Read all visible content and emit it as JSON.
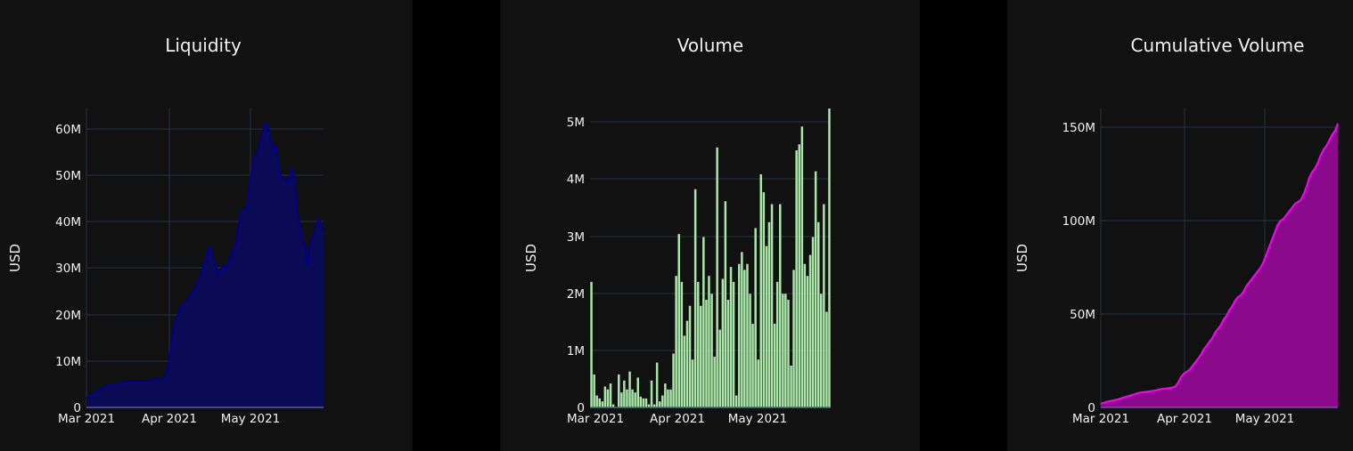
{
  "charts": [
    {
      "title": "Liquidity",
      "ylabel": "USD",
      "xticks": [
        "Mar 2021",
        "Apr 2021",
        "May 2021"
      ],
      "yticks": [
        "0",
        "10M",
        "20M",
        "30M",
        "40M",
        "50M",
        "60M"
      ],
      "color": "#00008b",
      "fill": "#0b0b55"
    },
    {
      "title": "Volume",
      "ylabel": "USD",
      "xticks": [
        "Mar 2021",
        "Apr 2021",
        "May 2021"
      ],
      "yticks": [
        "0",
        "1M",
        "2M",
        "3M",
        "4M",
        "5M"
      ],
      "color": "#a8e6a8"
    },
    {
      "title": "Cumulative Volume",
      "ylabel": "USD",
      "xticks": [
        "Mar 2021",
        "Apr 2021",
        "May 2021"
      ],
      "yticks": [
        "0",
        "50M",
        "100M",
        "150M"
      ],
      "color": "#ff00ff",
      "fill": "#8b0a8b"
    }
  ],
  "chart_data": [
    {
      "type": "area",
      "title": "Liquidity",
      "xlabel": "",
      "ylabel": "USD",
      "x_start": "2021-03-01",
      "x_end": "2021-05-31",
      "ylim": [
        0,
        65
      ],
      "y_unit": "M USD",
      "y": [
        2,
        2.5,
        3,
        3.3,
        3.6,
        3.9,
        4.2,
        4.5,
        4.8,
        5,
        5,
        5.1,
        5.2,
        5.5,
        5.5,
        5.6,
        5.7,
        5.8,
        5.8,
        5.8,
        5.8,
        5.8,
        5.8,
        5.8,
        5.9,
        6,
        6.2,
        6.5,
        6,
        6.3,
        7,
        9,
        13,
        17,
        19,
        21,
        22,
        22.5,
        23,
        24,
        25,
        26,
        27,
        28,
        30,
        32,
        34,
        35,
        33,
        31,
        29,
        30,
        31,
        30,
        32,
        33,
        35,
        36,
        41,
        43,
        43,
        44,
        49,
        52,
        55,
        55,
        58,
        60,
        62,
        61,
        58,
        56,
        57,
        52,
        50,
        50,
        49,
        50,
        52,
        50,
        42,
        40,
        36,
        35,
        31,
        36,
        37,
        39,
        41,
        40,
        38
      ]
    },
    {
      "type": "bar",
      "title": "Volume",
      "xlabel": "",
      "ylabel": "USD",
      "x_start": "2021-03-01",
      "x_end": "2021-05-31",
      "ylim": [
        0,
        5
      ],
      "y_unit": "M USD",
      "values": [
        2.1,
        0.55,
        0.2,
        0.15,
        0.1,
        0.35,
        0.3,
        0.4,
        0.05,
        0,
        0.55,
        0.25,
        0.45,
        0.3,
        0.6,
        0.3,
        0.25,
        0.5,
        0.18,
        0.15,
        0.15,
        0.05,
        0.45,
        0.05,
        0.75,
        0.1,
        0.2,
        0.4,
        0.3,
        0.3,
        0.9,
        2.2,
        2.9,
        2.1,
        1.2,
        1.45,
        1.7,
        0.8,
        3.65,
        2.1,
        1.7,
        2.85,
        1.8,
        2.2,
        1.9,
        0.85,
        4.35,
        1.3,
        2.15,
        3.45,
        1.8,
        2.35,
        2.1,
        0.2,
        2.4,
        2.6,
        2.3,
        2.4,
        1.9,
        1.4,
        3.0,
        0.8,
        3.9,
        3.6,
        2.7,
        3.1,
        3.4,
        1.4,
        2.1,
        3.4,
        1.9,
        1.9,
        1.8,
        0.7,
        2.3,
        4.3,
        4.4,
        4.7,
        2.4,
        2.2,
        2.55,
        2.85,
        3.95,
        3.1,
        1.9,
        3.4,
        1.6,
        5.0
      ]
    },
    {
      "type": "area",
      "title": "Cumulative Volume",
      "xlabel": "",
      "ylabel": "USD",
      "x_start": "2021-03-01",
      "x_end": "2021-05-31",
      "ylim": [
        0,
        160
      ],
      "y_unit": "M USD",
      "y": [
        2,
        2.5,
        3,
        3.3,
        3.6,
        4,
        4.3,
        4.8,
        5.3,
        5.7,
        6.2,
        6.7,
        7.2,
        7.7,
        8,
        8.2,
        8.4,
        8.6,
        8.8,
        9,
        9.5,
        9.8,
        10,
        10.2,
        10.4,
        10.6,
        11,
        13,
        16,
        18,
        19,
        20,
        22,
        24,
        26,
        28,
        31,
        33,
        35,
        37,
        40,
        42,
        44,
        47,
        49,
        52,
        54,
        57,
        59,
        60,
        62,
        65,
        67,
        69,
        71,
        73,
        75,
        78,
        82,
        86,
        90,
        94,
        98,
        100,
        101,
        103,
        105,
        107,
        109,
        110,
        111,
        114,
        118,
        123,
        126,
        128,
        131,
        135,
        138,
        140,
        143,
        146,
        148,
        152
      ]
    }
  ]
}
